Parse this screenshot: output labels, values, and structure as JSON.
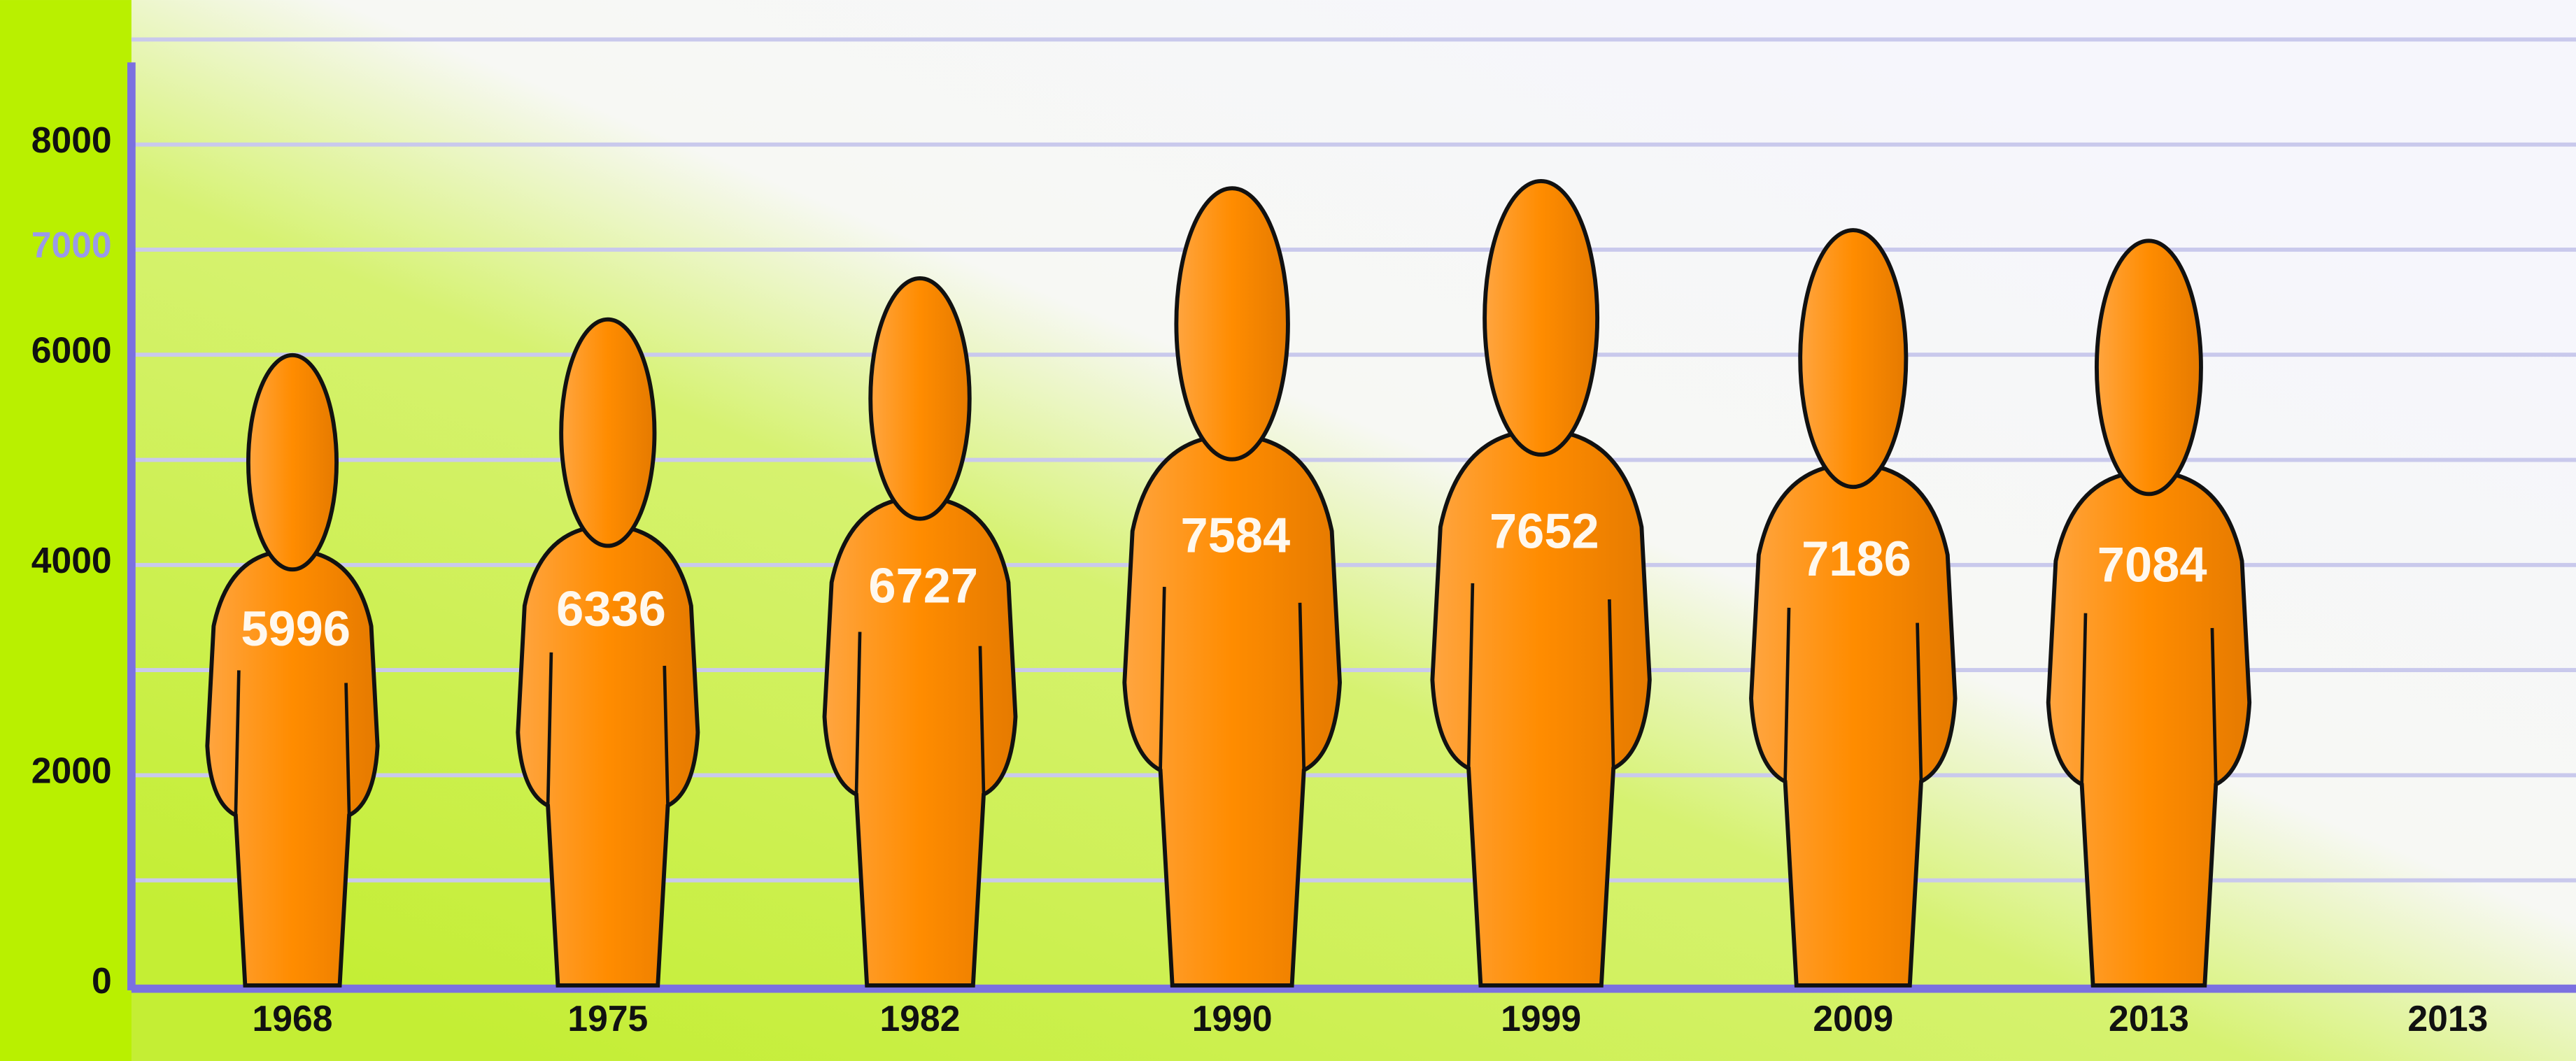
{
  "chart_data": {
    "type": "pictograph",
    "categories": [
      "1968",
      "1975",
      "1982",
      "1990",
      "1999",
      "2009",
      "2013",
      "2013"
    ],
    "values": [
      5996,
      6336,
      6727,
      7584,
      7652,
      7186,
      7084,
      null
    ],
    "color": "#ff8c00",
    "ylim": [
      0,
      9000
    ],
    "yticks": [
      0,
      2000,
      4000,
      6000,
      7000,
      8000
    ],
    "minor_yticks": [
      1000,
      3000,
      5000,
      9000
    ],
    "ytick_highlight": {
      "value": 7000,
      "color": "#9a9ae8"
    },
    "grid": true
  }
}
